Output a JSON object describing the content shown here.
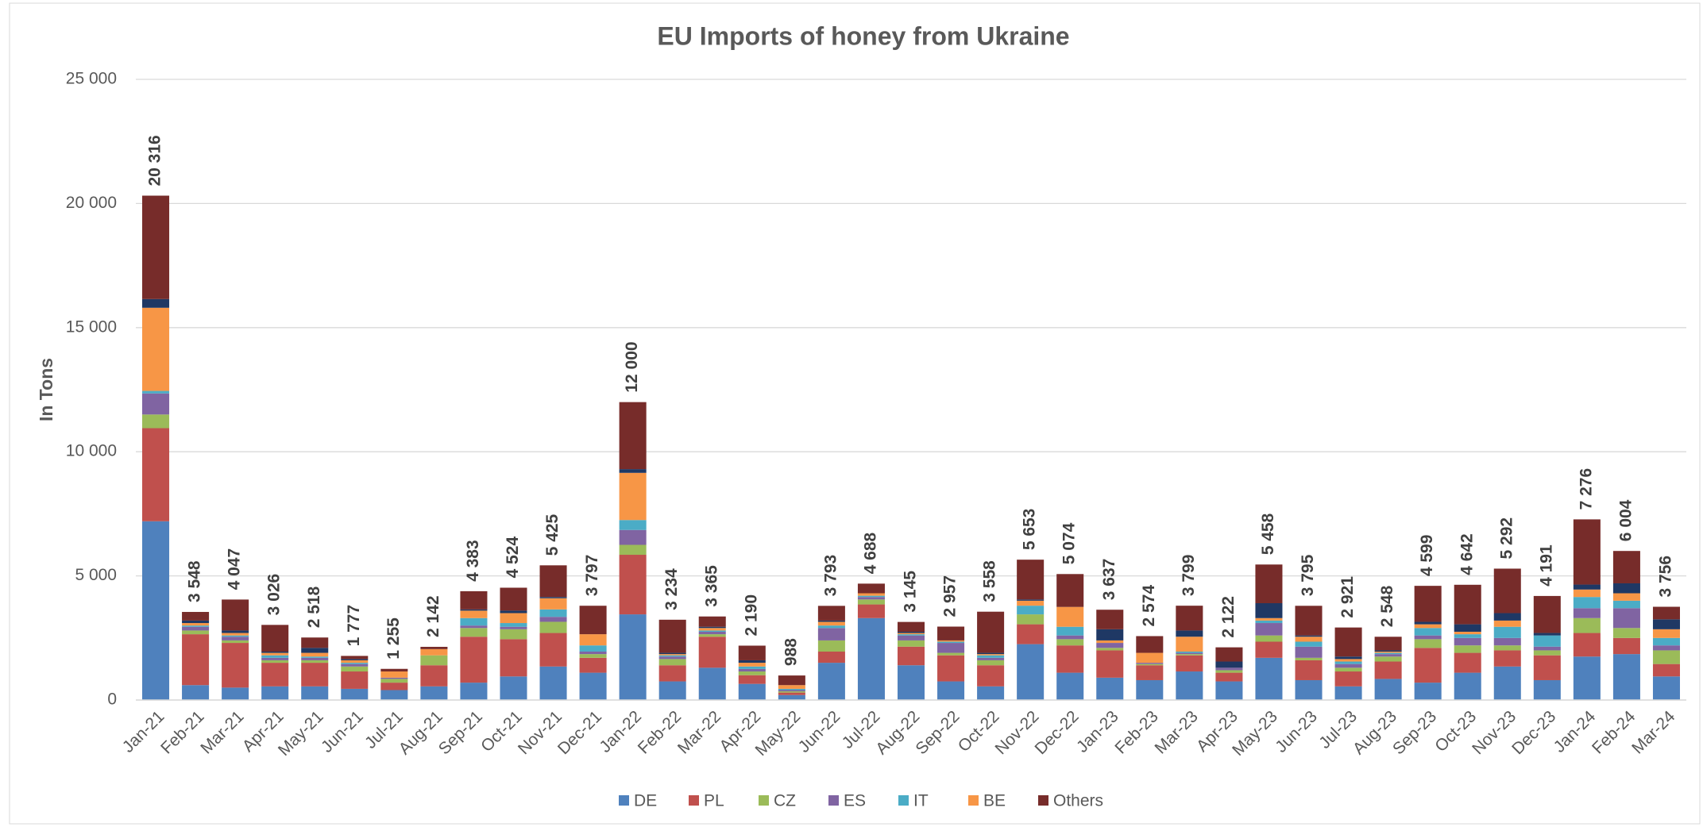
{
  "chart_data": {
    "type": "stacked_bar",
    "title": "EU Imports of honey from Ukraine",
    "y_label": "In Tons",
    "categories": [
      "Jan-21",
      "Feb-21",
      "Mar-21",
      "Apr-21",
      "May-21",
      "Jun-21",
      "Jul-21",
      "Aug-21",
      "Sep-21",
      "Oct-21",
      "Nov-21",
      "Dec-21",
      "Jan-22",
      "Feb-22",
      "Mar-22",
      "Apr-22",
      "May-22",
      "Jun-22",
      "Jul-22",
      "Aug-22",
      "Sep-22",
      "Oct-22",
      "Nov-22",
      "Dec-22",
      "Jan-23",
      "Feb-23",
      "Mar-23",
      "Apr-23",
      "May-23",
      "Jun-23",
      "Jul-23",
      "Aug-23",
      "Sep-23",
      "Oct-23",
      "Nov-23",
      "Dec-23",
      "Jan-24",
      "Feb-24",
      "Mar-24"
    ],
    "series": [
      {
        "name": "DE",
        "color": "#4f81bd",
        "values": [
          7200,
          600,
          500,
          550,
          550,
          450,
          400,
          550,
          700,
          950,
          1350,
          1100,
          3450,
          750,
          1300,
          650,
          200,
          1500,
          3300,
          1400,
          750,
          550,
          2250,
          1100,
          900,
          800,
          1150,
          750,
          1700,
          800,
          550,
          850,
          700,
          1100,
          1350,
          800,
          1750,
          1850,
          950
        ]
      },
      {
        "name": "PL",
        "color": "#c0504d",
        "values": [
          3750,
          2050,
          1800,
          950,
          950,
          700,
          300,
          850,
          1850,
          1500,
          1350,
          600,
          2400,
          650,
          1250,
          350,
          100,
          450,
          550,
          750,
          1050,
          850,
          800,
          1100,
          1100,
          600,
          650,
          350,
          650,
          800,
          600,
          700,
          1400,
          800,
          650,
          1000,
          950,
          650,
          500
        ]
      },
      {
        "name": "CZ",
        "color": "#9bbb59",
        "values": [
          550,
          150,
          100,
          100,
          100,
          200,
          150,
          400,
          350,
          400,
          450,
          150,
          400,
          250,
          100,
          150,
          50,
          450,
          200,
          250,
          100,
          200,
          400,
          250,
          100,
          50,
          50,
          100,
          250,
          100,
          150,
          200,
          350,
          300,
          200,
          200,
          600,
          400,
          550
        ]
      },
      {
        "name": "ES",
        "color": "#8064a2",
        "values": [
          850,
          150,
          150,
          100,
          100,
          100,
          50,
          0,
          100,
          100,
          200,
          100,
          600,
          100,
          100,
          100,
          50,
          500,
          100,
          200,
          400,
          100,
          0,
          150,
          200,
          50,
          50,
          100,
          500,
          450,
          150,
          100,
          150,
          300,
          300,
          150,
          400,
          800,
          200
        ]
      },
      {
        "name": "IT",
        "color": "#4bacc6",
        "values": [
          100,
          50,
          50,
          100,
          50,
          50,
          0,
          0,
          300,
          150,
          300,
          250,
          400,
          50,
          50,
          100,
          50,
          100,
          50,
          50,
          50,
          100,
          350,
          350,
          0,
          0,
          50,
          0,
          100,
          200,
          100,
          50,
          300,
          150,
          450,
          450,
          450,
          300,
          300
        ]
      },
      {
        "name": "BE",
        "color": "#f79646",
        "values": [
          3350,
          100,
          100,
          100,
          150,
          100,
          250,
          250,
          300,
          400,
          450,
          450,
          1900,
          50,
          100,
          150,
          150,
          150,
          100,
          50,
          50,
          50,
          200,
          800,
          100,
          400,
          600,
          0,
          100,
          200,
          100,
          50,
          150,
          100,
          250,
          0,
          300,
          300,
          350
        ]
      },
      {
        "color": "#1f3864",
        "values": [
          350,
          100,
          100,
          50,
          200,
          50,
          0,
          0,
          50,
          100,
          50,
          0,
          150,
          50,
          50,
          100,
          0,
          50,
          0,
          50,
          0,
          50,
          50,
          0,
          450,
          0,
          250,
          250,
          600,
          50,
          100,
          50,
          100,
          300,
          300,
          100,
          200,
          400,
          400
        ]
      },
      {
        "name": "Others",
        "color": "#772c2a",
        "values": [
          4166,
          348,
          1247,
          1076,
          418,
          127,
          105,
          92,
          733,
          924,
          1275,
          1147,
          2700,
          1334,
          415,
          590,
          388,
          593,
          388,
          395,
          557,
          1658,
          1603,
          1324,
          787,
          674,
          999,
          572,
          1558,
          1195,
          1171,
          548,
          1449,
          1592,
          1792,
          1491,
          2626,
          1304,
          506
        ]
      }
    ],
    "totals": [
      20316,
      3548,
      4047,
      3026,
      2518,
      1777,
      1255,
      2142,
      4383,
      4524,
      5425,
      3797,
      12000,
      3234,
      3365,
      2190,
      988,
      3793,
      4688,
      3145,
      2957,
      3558,
      5653,
      5074,
      3637,
      2574,
      3799,
      2122,
      5458,
      3795,
      2921,
      2548,
      4599,
      4642,
      5292,
      4191,
      7276,
      6004,
      3756
    ],
    "total_labels": [
      "20 316",
      "3 548",
      "4 047",
      "3 026",
      "2 518",
      "1 777",
      "1 255",
      "2 142",
      "4 383",
      "4 524",
      "5 425",
      "3 797",
      "12 000",
      "3 234",
      "3 365",
      "2 190",
      "988",
      "3 793",
      "4 688",
      "3 145",
      "2 957",
      "3 558",
      "5 653",
      "5 074",
      "3 637",
      "2 574",
      "3 799",
      "2 122",
      "5 458",
      "3 795",
      "2 921",
      "2 548",
      "4 599",
      "4 642",
      "5 292",
      "4 191",
      "7 276",
      "6 004",
      "3 756"
    ],
    "ylim": [
      0,
      25000
    ],
    "yticks": [
      0,
      {
        "value": 5000,
        "label": "5 000"
      },
      {
        "value": 10000,
        "label": "10 000"
      },
      {
        "value": 15000,
        "label": "15 000"
      },
      {
        "value": 20000,
        "label": "20 000"
      },
      {
        "value": 25000,
        "label": "25 000"
      }
    ],
    "grid": true,
    "legend": "bottom"
  }
}
